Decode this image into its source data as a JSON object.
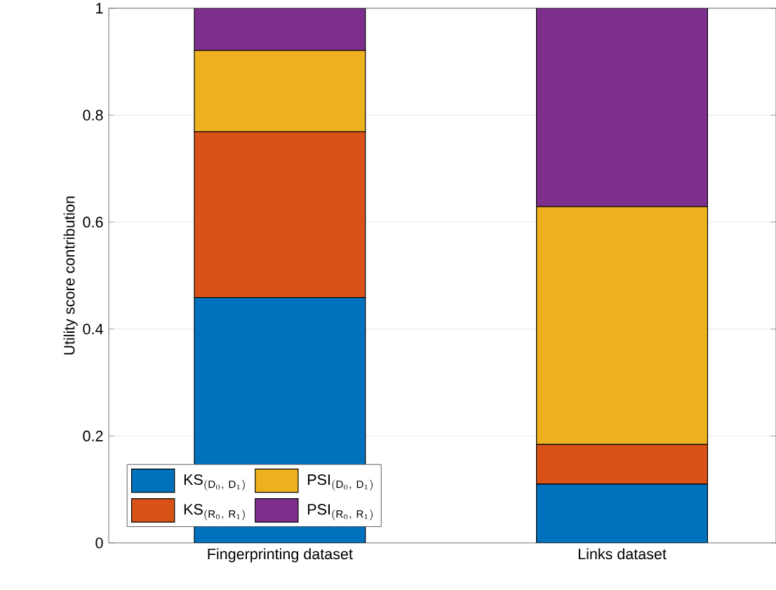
{
  "chart_data": {
    "type": "bar",
    "stacked": true,
    "ylabel": "Utility score contribution",
    "categories": [
      "Fingerprinting dataset",
      "Links dataset"
    ],
    "series": [
      {
        "name": "\\mathrm{KS}_{(\\mathrm{D}_0,\\ \\mathrm{D}_1)}",
        "color": "#0072bd",
        "values": [
          0.459,
          0.11
        ]
      },
      {
        "name": "\\mathrm{KS}_{(\\mathrm{R}_0,\\ \\mathrm{R}_1)}",
        "color": "#d95319",
        "values": [
          0.31,
          0.074
        ]
      },
      {
        "name": "\\mathrm{PSI}_{(\\mathrm{D}_0,\\ \\mathrm{D}_1)}",
        "color": "#edb120",
        "values": [
          0.152,
          0.445
        ]
      },
      {
        "name": "\\mathrm{PSI}_{(\\mathrm{R}_0,\\ \\mathrm{R}_1)}",
        "color": "#7e2f8e",
        "values": [
          0.079,
          0.371
        ]
      }
    ],
    "ylim": [
      0,
      1
    ],
    "yticks": [
      0,
      0.2,
      0.4,
      0.6,
      0.8,
      1
    ],
    "grid": "y",
    "legend": "bottom left"
  }
}
